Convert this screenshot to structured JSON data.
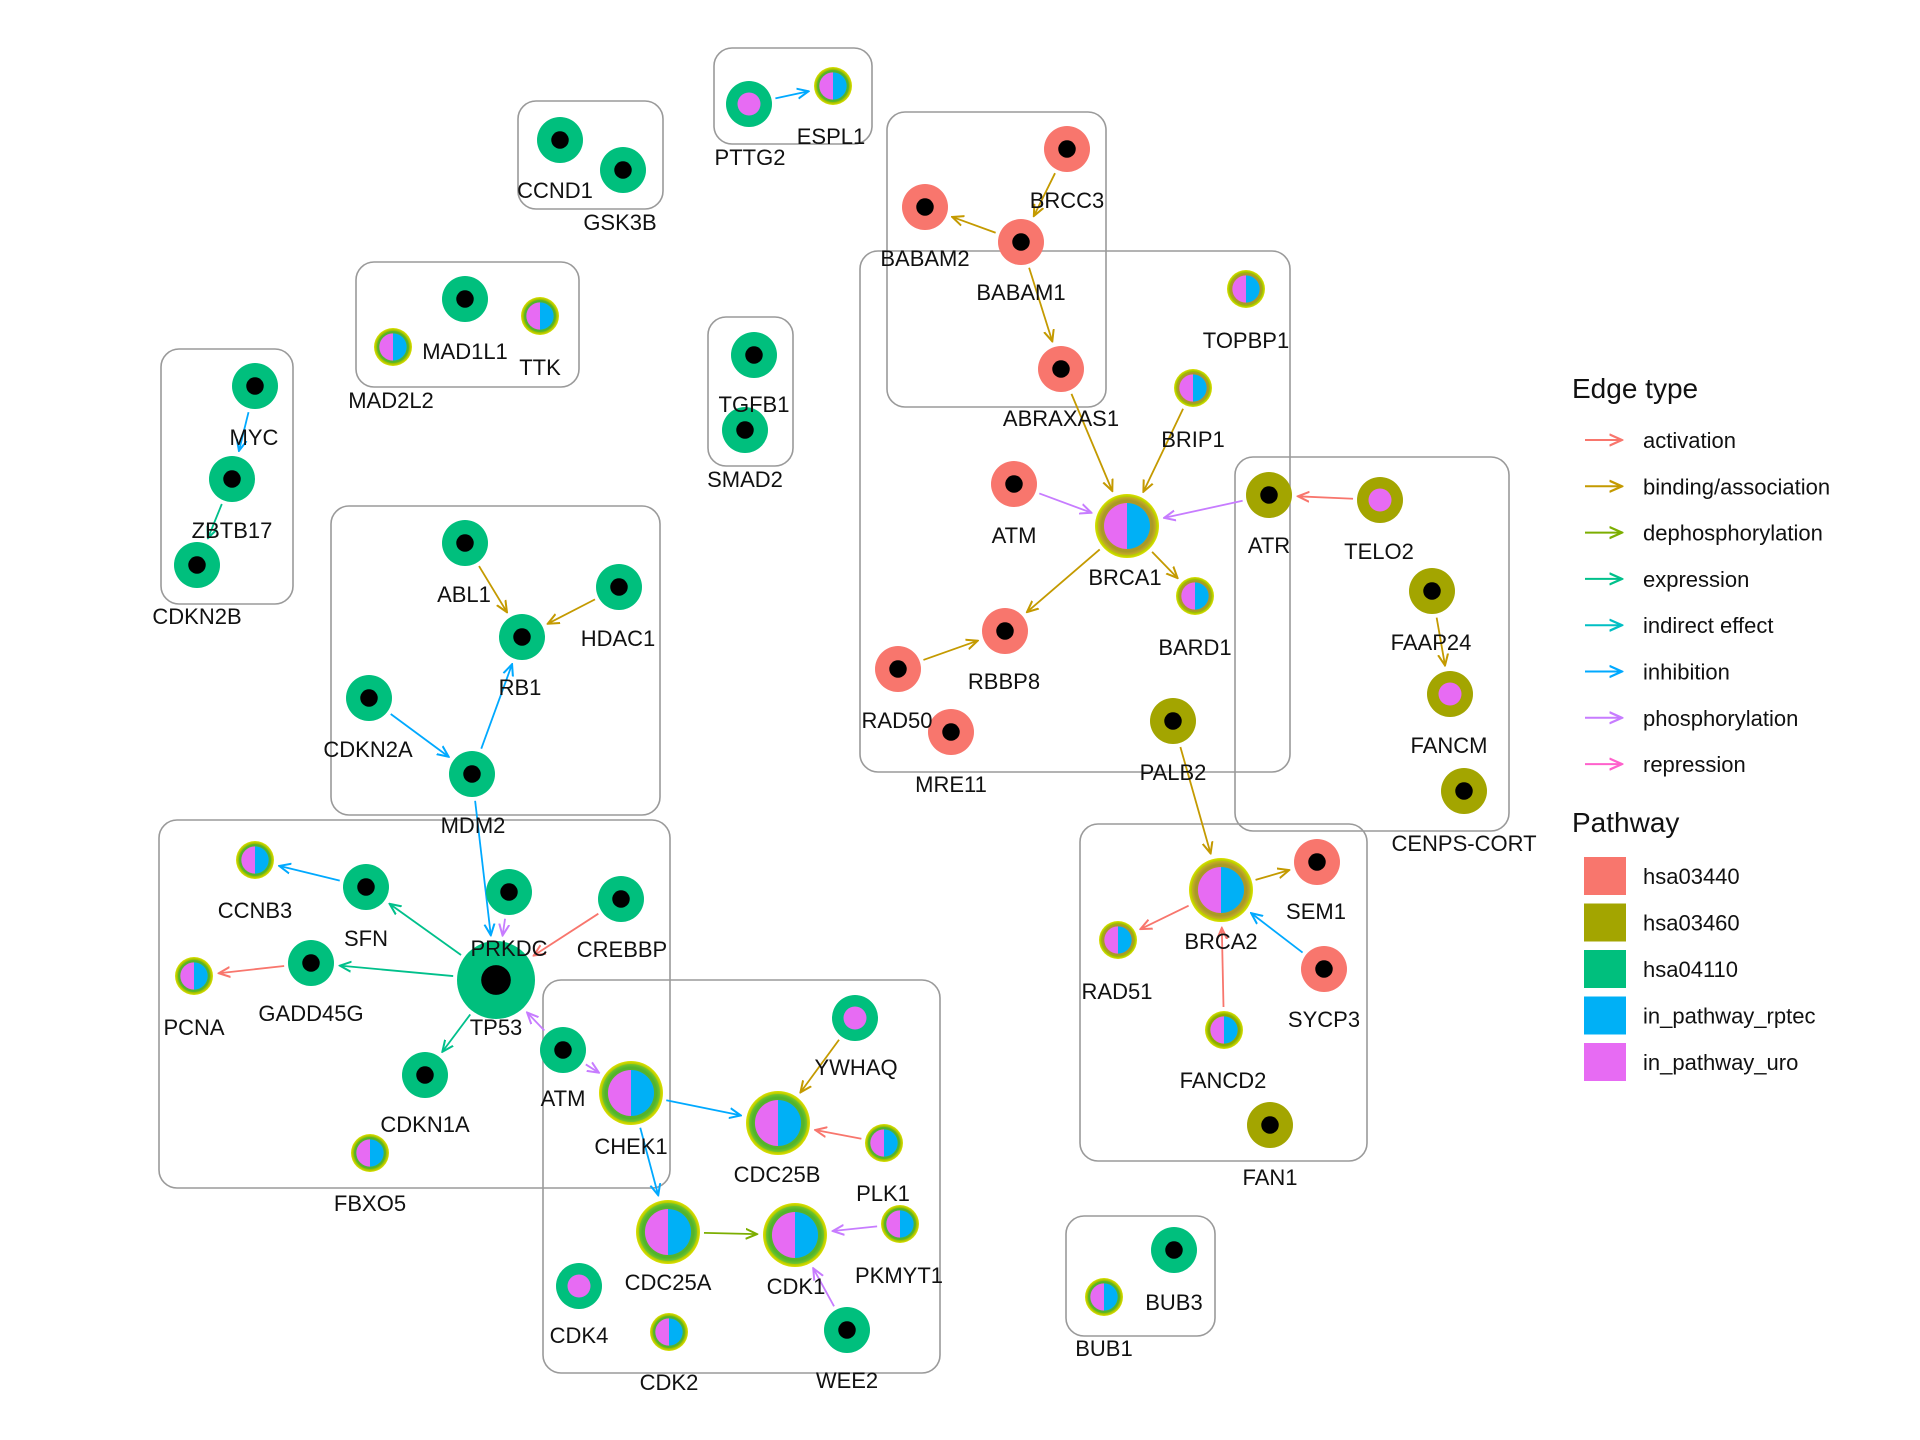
{
  "colors": {
    "hsa03440": "#F8766D",
    "hsa03460": "#A3A500",
    "hsa04110": "#00BF7D",
    "in_pathway_rptec": "#00B0F6",
    "in_pathway_uro": "#E76BF3",
    "activation": "#F8766D",
    "binding/association": "#C49A00",
    "dephosphorylation": "#7CAE00",
    "expression": "#00C08B",
    "indirect effect": "#00BFC4",
    "inhibition": "#00A9FF",
    "phosphorylation": "#C77CFF",
    "repression": "#FF61CC"
  },
  "legend": {
    "edge_title": "Edge type",
    "edge_items": [
      "activation",
      "binding/association",
      "dephosphorylation",
      "expression",
      "indirect effect",
      "inhibition",
      "phosphorylation",
      "repression"
    ],
    "pathway_title": "Pathway",
    "pathway_items": [
      "hsa03440",
      "hsa03460",
      "hsa04110",
      "in_pathway_rptec",
      "in_pathway_uro"
    ]
  },
  "nodes": [
    {
      "id": "CCND1",
      "pathway": "hsa04110",
      "center": "dot",
      "size": "m"
    },
    {
      "id": "GSK3B",
      "pathway": "hsa04110",
      "center": "dot",
      "size": "m"
    },
    {
      "id": "PTTG2",
      "pathway": "hsa04110",
      "center": "uro",
      "size": "m"
    },
    {
      "id": "ESPL1",
      "pathway": "hsa04110",
      "center": "split",
      "size": "s",
      "ring": true
    },
    {
      "id": "MAD1L1",
      "pathway": "hsa04110",
      "center": "dot",
      "size": "m"
    },
    {
      "id": "MAD2L2",
      "pathway": "hsa04110",
      "center": "split",
      "size": "s",
      "ring": true
    },
    {
      "id": "TTK",
      "pathway": "hsa04110",
      "center": "split",
      "size": "s",
      "ring": true
    },
    {
      "id": "TGFB1",
      "pathway": "hsa04110",
      "center": "dot",
      "size": "m"
    },
    {
      "id": "SMAD2",
      "pathway": "hsa04110",
      "center": "dot",
      "size": "m"
    },
    {
      "id": "MYC",
      "pathway": "hsa04110",
      "center": "dot",
      "size": "m"
    },
    {
      "id": "ZBTB17",
      "pathway": "hsa04110",
      "center": "dot",
      "size": "m"
    },
    {
      "id": "CDKN2B",
      "pathway": "hsa04110",
      "center": "dot",
      "size": "m"
    },
    {
      "id": "ABL1",
      "pathway": "hsa04110",
      "center": "dot",
      "size": "m"
    },
    {
      "id": "HDAC1",
      "pathway": "hsa04110",
      "center": "dot",
      "size": "m"
    },
    {
      "id": "RB1",
      "pathway": "hsa04110",
      "center": "dot",
      "size": "m"
    },
    {
      "id": "CDKN2A",
      "pathway": "hsa04110",
      "center": "dot",
      "size": "m"
    },
    {
      "id": "MDM2",
      "pathway": "hsa04110",
      "center": "dot",
      "size": "m"
    },
    {
      "id": "CCNB3",
      "pathway": "hsa04110",
      "center": "split",
      "size": "s",
      "ring": true
    },
    {
      "id": "SFN",
      "pathway": "hsa04110",
      "center": "dot",
      "size": "m"
    },
    {
      "id": "PRKDC",
      "pathway": "hsa04110",
      "center": "dot",
      "size": "m"
    },
    {
      "id": "CREBBP",
      "pathway": "hsa04110",
      "center": "dot",
      "size": "m"
    },
    {
      "id": "PCNA",
      "pathway": "hsa04110",
      "center": "split",
      "size": "s",
      "ring": true
    },
    {
      "id": "GADD45G",
      "pathway": "hsa04110",
      "center": "dot",
      "size": "m"
    },
    {
      "id": "TP53",
      "pathway": "hsa04110",
      "center": "dot",
      "size": "xl"
    },
    {
      "id": "CDKN1A",
      "pathway": "hsa04110",
      "center": "dot",
      "size": "m"
    },
    {
      "id": "FBXO5",
      "pathway": "hsa04110",
      "center": "split",
      "size": "s",
      "ring": true
    },
    {
      "id": "ATM",
      "pathway": "hsa04110",
      "center": "dot",
      "size": "m"
    },
    {
      "id": "CHEK1",
      "pathway": "hsa04110",
      "center": "split",
      "size": "l",
      "ring": true
    },
    {
      "id": "YWHAQ",
      "pathway": "hsa04110",
      "center": "uro",
      "size": "m"
    },
    {
      "id": "CDC25B",
      "pathway": "hsa04110",
      "center": "split",
      "size": "l",
      "ring": true
    },
    {
      "id": "PLK1",
      "pathway": "hsa04110",
      "center": "split",
      "size": "s",
      "ring": true
    },
    {
      "id": "CDC25A",
      "pathway": "hsa04110",
      "center": "split",
      "size": "l",
      "ring": true
    },
    {
      "id": "CDK1",
      "pathway": "hsa04110",
      "center": "split",
      "size": "l",
      "ring": true
    },
    {
      "id": "PKMYT1",
      "pathway": "hsa04110",
      "center": "split",
      "size": "s",
      "ring": true
    },
    {
      "id": "CDK4",
      "pathway": "hsa04110",
      "center": "uro",
      "size": "m"
    },
    {
      "id": "CDK2",
      "pathway": "hsa04110",
      "center": "split",
      "size": "s",
      "ring": true
    },
    {
      "id": "WEE2",
      "pathway": "hsa04110",
      "center": "dot",
      "size": "m"
    },
    {
      "id": "BRCC3",
      "pathway": "hsa03440",
      "center": "dot",
      "size": "m"
    },
    {
      "id": "BABAM2",
      "pathway": "hsa03440",
      "center": "dot",
      "size": "m"
    },
    {
      "id": "BABAM1",
      "pathway": "hsa03440",
      "center": "dot",
      "size": "m"
    },
    {
      "id": "ABRAXAS1",
      "pathway": "hsa03440",
      "center": "dot",
      "size": "m"
    },
    {
      "id": "TOPBP1",
      "pathway": "hsa03440",
      "center": "split",
      "size": "s",
      "ring": true
    },
    {
      "id": "BRIP1",
      "pathway": "hsa03440",
      "center": "split",
      "size": "s",
      "ring": true
    },
    {
      "id": "ATM",
      "pathway": "hsa03440",
      "center": "dot",
      "size": "m"
    },
    {
      "id": "BRCA1",
      "pathway": "hsa03440",
      "center": "split",
      "size": "l",
      "ring": true
    },
    {
      "id": "BARD1",
      "pathway": "hsa03440",
      "center": "split",
      "size": "s",
      "ring": true
    },
    {
      "id": "RBBP8",
      "pathway": "hsa03440",
      "center": "dot",
      "size": "m"
    },
    {
      "id": "RAD50",
      "pathway": "hsa03440",
      "center": "dot",
      "size": "m"
    },
    {
      "id": "MRE11",
      "pathway": "hsa03440",
      "center": "dot",
      "size": "m"
    },
    {
      "id": "PALB2",
      "pathway": "hsa03460",
      "center": "dot",
      "size": "m"
    },
    {
      "id": "ATR",
      "pathway": "hsa03460",
      "center": "dot",
      "size": "m"
    },
    {
      "id": "TELO2",
      "pathway": "hsa03460",
      "center": "uro",
      "size": "m"
    },
    {
      "id": "FAAP24",
      "pathway": "hsa03460",
      "center": "dot",
      "size": "m"
    },
    {
      "id": "FANCM",
      "pathway": "hsa03460",
      "center": "uro",
      "size": "m"
    },
    {
      "id": "CENPS-CORT",
      "pathway": "hsa03460",
      "center": "dot",
      "size": "m"
    },
    {
      "id": "BRCA2",
      "pathway": "hsa03440",
      "center": "split",
      "size": "l",
      "ring": true
    },
    {
      "id": "SEM1",
      "pathway": "hsa03440",
      "center": "dot",
      "size": "m"
    },
    {
      "id": "RAD51",
      "pathway": "hsa03440",
      "center": "split",
      "size": "s",
      "ring": true
    },
    {
      "id": "SYCP3",
      "pathway": "hsa03440",
      "center": "dot",
      "size": "m"
    },
    {
      "id": "FANCD2",
      "pathway": "hsa03460",
      "center": "split",
      "size": "s",
      "ring": true
    },
    {
      "id": "FAN1",
      "pathway": "hsa03460",
      "center": "dot",
      "size": "m"
    },
    {
      "id": "BUB1",
      "pathway": "hsa04110",
      "center": "split",
      "size": "s",
      "ring": true
    },
    {
      "id": "BUB3",
      "pathway": "hsa04110",
      "center": "dot",
      "size": "m"
    }
  ],
  "edges": [
    {
      "from": "PTTG2",
      "to": "ESPL1",
      "type": "inhibition"
    },
    {
      "from": "MYC",
      "to": "ZBTB17",
      "type": "inhibition"
    },
    {
      "from": "ZBTB17",
      "to": "CDKN2B",
      "type": "expression"
    },
    {
      "from": "ABL1",
      "to": "RB1",
      "type": "binding/association"
    },
    {
      "from": "HDAC1",
      "to": "RB1",
      "type": "binding/association"
    },
    {
      "from": "CDKN2A",
      "to": "MDM2",
      "type": "inhibition"
    },
    {
      "from": "MDM2",
      "to": "RB1",
      "type": "inhibition"
    },
    {
      "from": "MDM2",
      "to": "TP53",
      "type": "inhibition"
    },
    {
      "from": "TP53",
      "to": "SFN",
      "type": "expression"
    },
    {
      "from": "TP53",
      "to": "GADD45G",
      "type": "expression"
    },
    {
      "from": "TP53",
      "to": "CDKN1A",
      "type": "expression"
    },
    {
      "from": "SFN",
      "to": "CCNB3",
      "type": "inhibition"
    },
    {
      "from": "GADD45G",
      "to": "PCNA",
      "type": "activation"
    },
    {
      "from": "CREBBP",
      "to": "TP53",
      "type": "activation"
    },
    {
      "from": "PRKDC",
      "to": "TP53",
      "type": "phosphorylation"
    },
    {
      "from": "ATM",
      "to": "TP53",
      "type": "phosphorylation"
    },
    {
      "from": "ATM",
      "to": "CHEK1",
      "type": "phosphorylation"
    },
    {
      "from": "CHEK1",
      "to": "CDC25B",
      "type": "inhibition"
    },
    {
      "from": "CHEK1",
      "to": "CDC25A",
      "type": "inhibition"
    },
    {
      "from": "YWHAQ",
      "to": "CDC25B",
      "type": "binding/association"
    },
    {
      "from": "PLK1",
      "to": "CDC25B",
      "type": "activation"
    },
    {
      "from": "CDC25A",
      "to": "CDK1",
      "type": "dephosphorylation"
    },
    {
      "from": "PKMYT1",
      "to": "CDK1",
      "type": "phosphorylation"
    },
    {
      "from": "WEE2",
      "to": "CDK1",
      "type": "phosphorylation"
    },
    {
      "from": "BABAM1",
      "to": "BABAM2",
      "type": "binding/association"
    },
    {
      "from": "BABAM1",
      "to": "ABRAXAS1",
      "type": "binding/association"
    },
    {
      "from": "BRCC3",
      "to": "BABAM1",
      "type": "binding/association"
    },
    {
      "from": "ABRAXAS1",
      "to": "BRCA1",
      "type": "binding/association"
    },
    {
      "from": "BRIP1",
      "to": "BRCA1",
      "type": "binding/association"
    },
    {
      "from": "ATM",
      "to": "BRCA1",
      "type": "phosphorylation"
    },
    {
      "from": "ATR",
      "to": "BRCA1",
      "type": "phosphorylation"
    },
    {
      "from": "BRCA1",
      "to": "RBBP8",
      "type": "binding/association"
    },
    {
      "from": "BRCA1",
      "to": "BARD1",
      "type": "binding/association"
    },
    {
      "from": "RAD50",
      "to": "RBBP8",
      "type": "binding/association"
    },
    {
      "from": "TELO2",
      "to": "ATR",
      "type": "activation"
    },
    {
      "from": "FAAP24",
      "to": "FANCM",
      "type": "binding/association"
    },
    {
      "from": "PALB2",
      "to": "BRCA2",
      "type": "binding/association"
    },
    {
      "from": "BRCA2",
      "to": "RAD51",
      "type": "activation"
    },
    {
      "from": "BRCA2",
      "to": "SEM1",
      "type": "binding/association"
    },
    {
      "from": "SYCP3",
      "to": "BRCA2",
      "type": "inhibition"
    },
    {
      "from": "FANCD2",
      "to": "BRCA2",
      "type": "activation"
    }
  ]
}
